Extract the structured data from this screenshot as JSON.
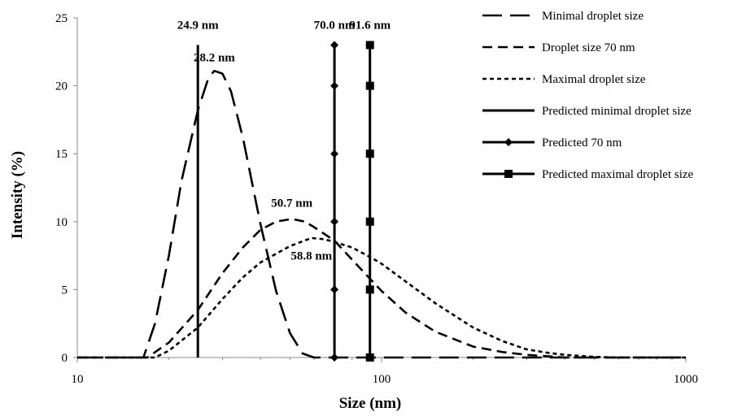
{
  "chart_data": {
    "type": "line",
    "xlabel": "Size (nm)",
    "ylabel": "Intensity (%)",
    "xscale": "log",
    "xlim": [
      10,
      1000
    ],
    "ylim": [
      0,
      25
    ],
    "x_ticks": [
      "10",
      "100",
      "1000"
    ],
    "y_ticks": [
      "0",
      "5",
      "10",
      "15",
      "20",
      "25"
    ],
    "grid": false,
    "legend_position": "right",
    "series": [
      {
        "name": "Minimal droplet size",
        "style": "long-dash",
        "color": "#000000",
        "x": [
          10,
          16.5,
          18,
          20,
          22,
          24.9,
          27,
          28.2,
          30,
          32,
          35,
          40,
          45,
          50,
          55,
          60,
          65,
          68,
          70,
          1000
        ],
        "y": [
          0,
          0,
          2.5,
          7.5,
          13,
          18.2,
          20.6,
          21.1,
          20.9,
          19.6,
          16.2,
          9.8,
          4.9,
          1.8,
          0.3,
          0,
          0,
          0,
          0,
          0
        ]
      },
      {
        "name": "Droplet size 70 nm",
        "style": "dash",
        "color": "#000000",
        "x": [
          10,
          17,
          20,
          24.9,
          30,
          35,
          40,
          45,
          50.7,
          56,
          60,
          70,
          80,
          91.6,
          100,
          120,
          150,
          200,
          250,
          300,
          400,
          1000
        ],
        "y": [
          0,
          0,
          1.1,
          3.5,
          6.2,
          8.1,
          9.4,
          10.0,
          10.2,
          10.0,
          9.6,
          8.6,
          7.2,
          5.8,
          4.9,
          3.3,
          1.9,
          0.8,
          0.4,
          0.2,
          0,
          0
        ]
      },
      {
        "name": "Maximal droplet size",
        "style": "short-dash",
        "color": "#000000",
        "x": [
          10,
          18,
          20,
          24.9,
          30,
          35,
          40,
          50,
          58.8,
          65,
          70,
          80,
          91.6,
          100,
          120,
          150,
          200,
          250,
          300,
          350,
          400,
          500,
          600,
          1000
        ],
        "y": [
          0,
          0,
          0.5,
          2.2,
          4.3,
          5.9,
          7.0,
          8.2,
          8.8,
          8.7,
          8.5,
          8.1,
          7.4,
          6.9,
          5.6,
          4.0,
          2.2,
          1.2,
          0.6,
          0.35,
          0.2,
          0.05,
          0,
          0
        ]
      },
      {
        "name": "Predicted minimal droplet size",
        "style": "solid",
        "color": "#000000",
        "x": [
          24.9,
          24.9
        ],
        "y": [
          0,
          23
        ]
      },
      {
        "name": "Predicted 70 nm",
        "style": "solid",
        "marker": "diamond",
        "color": "#000000",
        "x": [
          70,
          70,
          70,
          70,
          70,
          70
        ],
        "y": [
          0,
          5,
          10,
          15,
          20,
          23
        ]
      },
      {
        "name": "Predicted maximal droplet size",
        "style": "solid",
        "marker": "square",
        "color": "#000000",
        "x": [
          91.6,
          91.6,
          91.6,
          91.6,
          91.6,
          91.6
        ],
        "y": [
          0,
          5,
          10,
          15,
          20,
          23
        ]
      }
    ],
    "annotations": [
      {
        "text": "24.9 nm",
        "x": 24.9,
        "y": 24.2
      },
      {
        "text": "28.2 nm",
        "x": 28.2,
        "y": 21.8
      },
      {
        "text": "70.0 nm",
        "x": 70.0,
        "y": 24.2
      },
      {
        "text": "91.6 nm",
        "x": 91.6,
        "y": 24.2
      },
      {
        "text": "50.7 nm",
        "x": 50.7,
        "y": 11.1
      },
      {
        "text": "58.8 nm",
        "x": 58.8,
        "y": 7.2
      }
    ]
  }
}
